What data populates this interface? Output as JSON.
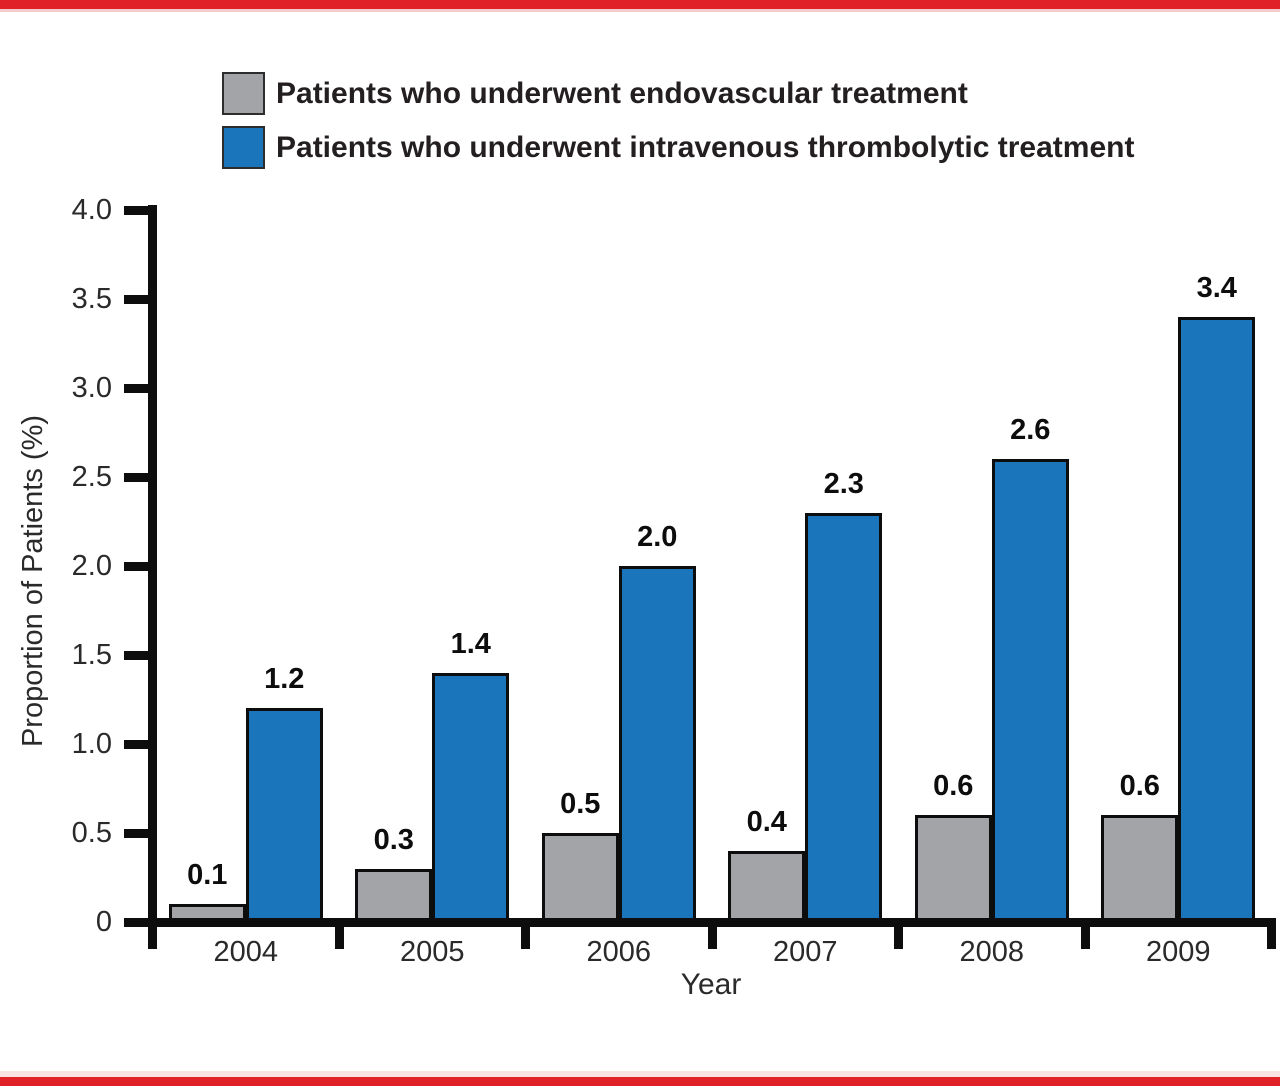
{
  "page": {
    "background": "#ffffff",
    "top_rule_color": "#e02127",
    "bottom_rule_color": "#e02127"
  },
  "legend": {
    "items": [
      {
        "key": "endovascular",
        "label": "Patients who underwent endovascular treatment",
        "color": "#a2a4a7"
      },
      {
        "key": "thrombolytic",
        "label": "Patients who underwent intravenous thrombolytic treatment",
        "color": "#1a75bb"
      }
    ]
  },
  "chart_data": {
    "type": "bar",
    "title": "",
    "xlabel": "Year",
    "ylabel": "Proportion of Patients (%)",
    "categories": [
      "2004",
      "2005",
      "2006",
      "2007",
      "2008",
      "2009"
    ],
    "series": [
      {
        "key": "endovascular",
        "name": "Patients who underwent endovascular treatment",
        "color": "#a2a4a7",
        "values": [
          0.1,
          0.3,
          0.5,
          0.4,
          0.6,
          0.6
        ]
      },
      {
        "key": "thrombolytic",
        "name": "Patients who underwent intravenous thrombolytic treatment",
        "color": "#1a75bb",
        "values": [
          1.2,
          1.4,
          2.0,
          2.3,
          2.6,
          3.4
        ]
      }
    ],
    "ylim": [
      0,
      4.0
    ],
    "ytick_step": 0.5,
    "ytick_labels": [
      "0",
      "0.5",
      "1.0",
      "1.5",
      "2.0",
      "2.5",
      "3.0",
      "3.5",
      "4.0"
    ],
    "grid": false,
    "legend_position": "top-left",
    "bar_value_labels": true,
    "bar_border_color": "#0d0d0d"
  }
}
